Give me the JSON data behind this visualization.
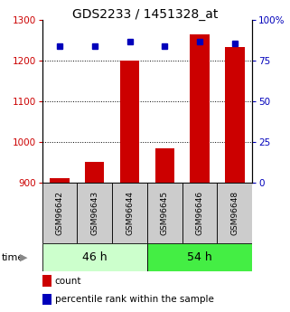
{
  "title": "GDS2233 / 1451328_at",
  "samples": [
    "GSM96642",
    "GSM96643",
    "GSM96644",
    "GSM96645",
    "GSM96646",
    "GSM96648"
  ],
  "counts": [
    910,
    950,
    1200,
    985,
    1265,
    1235
  ],
  "percentiles": [
    84,
    84,
    87,
    84,
    87,
    86
  ],
  "groups": [
    {
      "label": "46 h",
      "indices": [
        0,
        1,
        2
      ],
      "color": "#ccffcc"
    },
    {
      "label": "54 h",
      "indices": [
        3,
        4,
        5
      ],
      "color": "#44ee44"
    }
  ],
  "left_ylim": [
    900,
    1300
  ],
  "left_yticks": [
    900,
    1000,
    1100,
    1200,
    1300
  ],
  "right_ylim": [
    0,
    100
  ],
  "right_yticks": [
    0,
    25,
    50,
    75,
    100
  ],
  "right_yticklabels": [
    "0",
    "25",
    "50",
    "75",
    "100%"
  ],
  "bar_color": "#cc0000",
  "dot_color": "#0000bb",
  "tick_color_left": "#cc0000",
  "tick_color_right": "#0000bb",
  "bar_width": 0.55,
  "legend_items": [
    "count",
    "percentile rank within the sample"
  ],
  "grid_yticks": [
    1000,
    1100,
    1200
  ],
  "time_label": "time",
  "sample_box_color": "#cccccc",
  "title_fontsize": 10
}
